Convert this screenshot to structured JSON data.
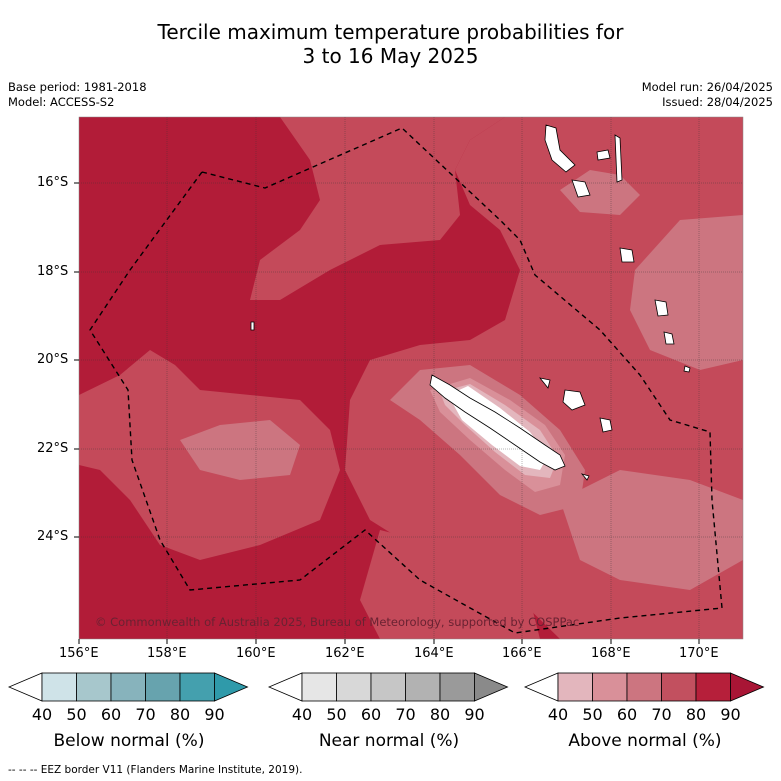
{
  "title": {
    "line1": "Tercile maximum temperature probabilities for",
    "line2": "3 to 16 May 2025"
  },
  "meta": {
    "base_period": "Base period: 1981-2018",
    "model": "Model: ACCESS-S2",
    "model_run": "Model run: 26/04/2025",
    "issued": "Issued: 28/04/2025"
  },
  "axes": {
    "lat_ticks": [
      "16°S",
      "18°S",
      "20°S",
      "22°S",
      "24°S"
    ],
    "lon_ticks": [
      "156°E",
      "158°E",
      "160°E",
      "162°E",
      "164°E",
      "166°E",
      "168°E",
      "170°E"
    ]
  },
  "credit": "© Commonwealth of Australia 2025, Bureau of Meteorology, supported by COSPPac",
  "colorbars": [
    {
      "label": "Below normal (%)",
      "ticks": [
        "40",
        "50",
        "60",
        "70",
        "80",
        "90"
      ],
      "colors": [
        "#ffffff",
        "#cfe3e8",
        "#a7c7cc",
        "#87b3bc",
        "#67a3ae",
        "#44a0ae",
        "#2f9aaa"
      ]
    },
    {
      "label": "Near normal (%)",
      "ticks": [
        "40",
        "50",
        "60",
        "70",
        "80",
        "90"
      ],
      "colors": [
        "#ffffff",
        "#e6e6e6",
        "#d8d8d8",
        "#c6c6c6",
        "#b2b2b2",
        "#9a9a9a",
        "#8a8a8a"
      ]
    },
    {
      "label": "Above normal (%)",
      "ticks": [
        "40",
        "50",
        "60",
        "70",
        "80",
        "90"
      ],
      "colors": [
        "#ffffff",
        "#e3b6bd",
        "#d99099",
        "#cc7580",
        "#c2505f",
        "#b61f3a",
        "#a81535"
      ]
    }
  ],
  "footer": "-- -- -- EEZ border V11 (Flanders Marine Institute, 2019)."
}
